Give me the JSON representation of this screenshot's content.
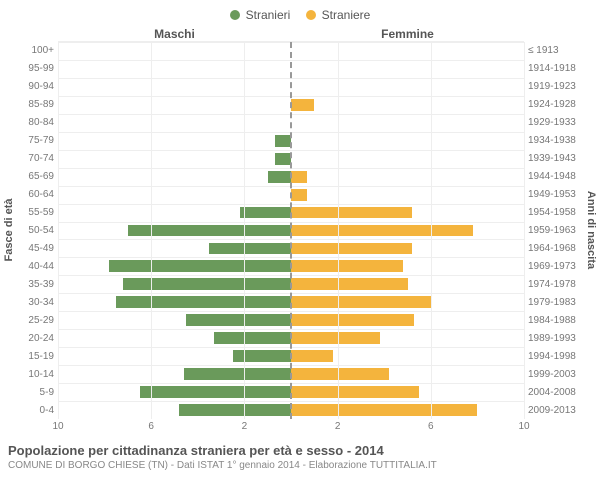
{
  "legend": {
    "male": {
      "label": "Stranieri",
      "color": "#6a9a5b"
    },
    "female": {
      "label": "Straniere",
      "color": "#f4b43d"
    }
  },
  "headers": {
    "male": "Maschi",
    "female": "Femmine"
  },
  "axis": {
    "left_label": "Fasce di età",
    "right_label": "Anni di nascita",
    "xmax": 10,
    "xticks": [
      10,
      6,
      2,
      2,
      6,
      10
    ],
    "bar_color_m": "#6a9a5b",
    "bar_color_f": "#f4b43d",
    "grid_color": "#eee",
    "centerline_color": "#999"
  },
  "rows": [
    {
      "age": "100+",
      "birth": "≤ 1913",
      "m": 0,
      "f": 0
    },
    {
      "age": "95-99",
      "birth": "1914-1918",
      "m": 0,
      "f": 0
    },
    {
      "age": "90-94",
      "birth": "1919-1923",
      "m": 0,
      "f": 0
    },
    {
      "age": "85-89",
      "birth": "1924-1928",
      "m": 0,
      "f": 1.0
    },
    {
      "age": "80-84",
      "birth": "1929-1933",
      "m": 0,
      "f": 0
    },
    {
      "age": "75-79",
      "birth": "1934-1938",
      "m": 0.7,
      "f": 0
    },
    {
      "age": "70-74",
      "birth": "1939-1943",
      "m": 0.7,
      "f": 0
    },
    {
      "age": "65-69",
      "birth": "1944-1948",
      "m": 1.0,
      "f": 0.7
    },
    {
      "age": "60-64",
      "birth": "1949-1953",
      "m": 0,
      "f": 0.7
    },
    {
      "age": "55-59",
      "birth": "1954-1958",
      "m": 2.2,
      "f": 5.2
    },
    {
      "age": "50-54",
      "birth": "1959-1963",
      "m": 7.0,
      "f": 7.8
    },
    {
      "age": "45-49",
      "birth": "1964-1968",
      "m": 3.5,
      "f": 5.2
    },
    {
      "age": "40-44",
      "birth": "1969-1973",
      "m": 7.8,
      "f": 4.8
    },
    {
      "age": "35-39",
      "birth": "1974-1978",
      "m": 7.2,
      "f": 5.0
    },
    {
      "age": "30-34",
      "birth": "1979-1983",
      "m": 7.5,
      "f": 6.0
    },
    {
      "age": "25-29",
      "birth": "1984-1988",
      "m": 4.5,
      "f": 5.3
    },
    {
      "age": "20-24",
      "birth": "1989-1993",
      "m": 3.3,
      "f": 3.8
    },
    {
      "age": "15-19",
      "birth": "1994-1998",
      "m": 2.5,
      "f": 1.8
    },
    {
      "age": "10-14",
      "birth": "1999-2003",
      "m": 4.6,
      "f": 4.2
    },
    {
      "age": "5-9",
      "birth": "2004-2008",
      "m": 6.5,
      "f": 5.5
    },
    {
      "age": "0-4",
      "birth": "2009-2013",
      "m": 4.8,
      "f": 8.0
    }
  ],
  "footer": {
    "title": "Popolazione per cittadinanza straniera per età e sesso - 2014",
    "subtitle": "COMUNE DI BORGO CHIESE (TN) - Dati ISTAT 1° gennaio 2014 - Elaborazione TUTTITALIA.IT"
  }
}
